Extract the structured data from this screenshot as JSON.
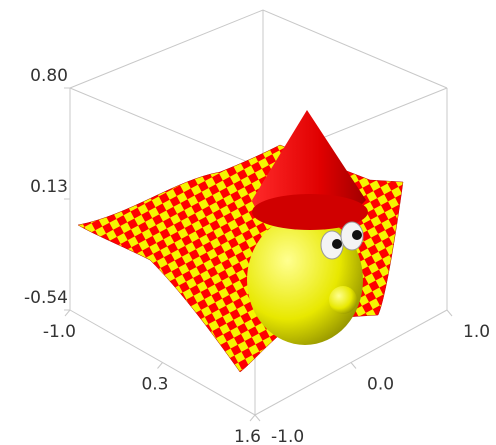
{
  "chart_data": {
    "type": "surface3d",
    "xlim": [
      -1.0,
      1.6
    ],
    "xticks": [
      {
        "value": -1.0,
        "label": "-1.0"
      },
      0.3,
      1.6
    ],
    "ylim": [
      -1.0,
      1.0
    ],
    "yticks": [
      {
        "value": -1.0,
        "label": "-1.0"
      },
      {
        "value": 0.0,
        "label": "0.0"
      },
      {
        "value": 1.0,
        "label": "1.0"
      }
    ],
    "zlim": [
      -0.54,
      0.8
    ],
    "zticks": [
      -0.54,
      0.13,
      {
        "value": 0.8,
        "label": "0.80"
      }
    ]
  }
}
